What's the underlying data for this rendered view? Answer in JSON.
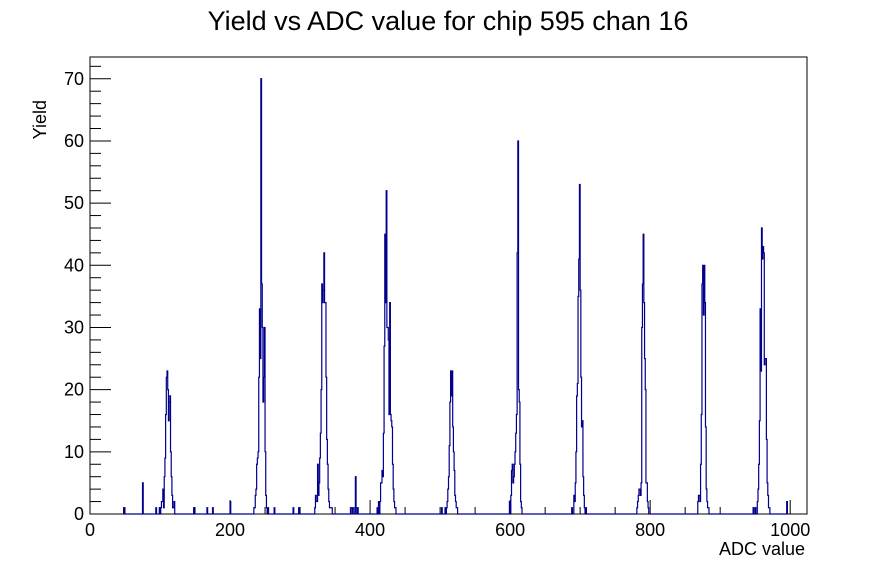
{
  "chart_data": {
    "type": "bar",
    "title": "Yield vs ADC value for chip 595 chan 16",
    "xlabel": "ADC value",
    "ylabel": "Yield",
    "xlim": [
      0,
      1024
    ],
    "ylim": [
      0,
      73.5
    ],
    "x_ticks": [
      0,
      200,
      400,
      600,
      800,
      1000
    ],
    "y_ticks": [
      0,
      10,
      20,
      30,
      40,
      50,
      60,
      70
    ],
    "grid": false,
    "legend": "none",
    "series": [
      {
        "color": "#00008b",
        "points": [
          [
            48,
            1
          ],
          [
            75,
            5
          ],
          [
            94,
            1
          ],
          [
            99,
            1
          ],
          [
            101,
            1
          ],
          [
            102,
            2
          ],
          [
            103,
            2
          ],
          [
            104,
            4
          ],
          [
            105,
            1
          ],
          [
            106,
            6
          ],
          [
            107,
            9
          ],
          [
            108,
            16
          ],
          [
            109,
            22
          ],
          [
            110,
            23
          ],
          [
            111,
            20
          ],
          [
            112,
            15
          ],
          [
            113,
            18
          ],
          [
            114,
            19
          ],
          [
            115,
            10
          ],
          [
            116,
            6
          ],
          [
            117,
            3
          ],
          [
            118,
            1
          ],
          [
            119,
            1
          ],
          [
            120,
            2
          ],
          [
            148,
            1
          ],
          [
            167,
            1
          ],
          [
            175,
            1
          ],
          [
            200,
            2
          ],
          [
            234,
            1
          ],
          [
            235,
            1
          ],
          [
            236,
            3
          ],
          [
            237,
            4
          ],
          [
            238,
            8
          ],
          [
            239,
            9
          ],
          [
            240,
            10
          ],
          [
            241,
            22
          ],
          [
            242,
            33
          ],
          [
            243,
            25
          ],
          [
            244,
            70
          ],
          [
            245,
            37
          ],
          [
            246,
            30
          ],
          [
            247,
            18
          ],
          [
            248,
            22
          ],
          [
            249,
            30
          ],
          [
            250,
            10
          ],
          [
            251,
            3
          ],
          [
            252,
            1
          ],
          [
            254,
            1
          ],
          [
            263,
            1
          ],
          [
            290,
            1
          ],
          [
            298,
            1
          ],
          [
            321,
            1
          ],
          [
            322,
            3
          ],
          [
            323,
            2
          ],
          [
            324,
            2
          ],
          [
            325,
            8
          ],
          [
            326,
            3
          ],
          [
            327,
            5
          ],
          [
            328,
            9
          ],
          [
            329,
            13
          ],
          [
            330,
            20
          ],
          [
            331,
            37
          ],
          [
            332,
            34
          ],
          [
            333,
            36
          ],
          [
            334,
            42
          ],
          [
            335,
            34
          ],
          [
            336,
            34
          ],
          [
            337,
            22
          ],
          [
            338,
            12
          ],
          [
            339,
            8
          ],
          [
            340,
            4
          ],
          [
            341,
            2
          ],
          [
            342,
            1
          ],
          [
            343,
            1
          ],
          [
            344,
            1
          ],
          [
            345,
            1
          ],
          [
            372,
            1
          ],
          [
            373,
            1
          ],
          [
            375,
            1
          ],
          [
            376,
            1
          ],
          [
            379,
            6
          ],
          [
            380,
            1
          ],
          [
            382,
            1
          ],
          [
            410,
            1
          ],
          [
            412,
            2
          ],
          [
            414,
            2
          ],
          [
            415,
            5
          ],
          [
            416,
            5
          ],
          [
            417,
            7
          ],
          [
            418,
            6
          ],
          [
            419,
            13
          ],
          [
            420,
            27
          ],
          [
            421,
            45
          ],
          [
            422,
            34
          ],
          [
            423,
            52
          ],
          [
            424,
            30
          ],
          [
            425,
            30
          ],
          [
            426,
            28
          ],
          [
            427,
            16
          ],
          [
            428,
            34
          ],
          [
            429,
            16
          ],
          [
            430,
            15
          ],
          [
            431,
            14
          ],
          [
            432,
            8
          ],
          [
            433,
            4
          ],
          [
            434,
            2
          ],
          [
            435,
            1
          ],
          [
            436,
            1
          ],
          [
            502,
            1
          ],
          [
            507,
            1
          ],
          [
            509,
            1
          ],
          [
            510,
            2
          ],
          [
            511,
            4
          ],
          [
            512,
            6
          ],
          [
            513,
            11
          ],
          [
            514,
            18
          ],
          [
            515,
            23
          ],
          [
            516,
            19
          ],
          [
            517,
            23
          ],
          [
            518,
            14
          ],
          [
            519,
            10
          ],
          [
            520,
            7
          ],
          [
            521,
            3
          ],
          [
            522,
            2
          ],
          [
            523,
            1
          ],
          [
            524,
            1
          ],
          [
            599,
            2
          ],
          [
            601,
            3
          ],
          [
            602,
            7
          ],
          [
            603,
            8
          ],
          [
            604,
            5
          ],
          [
            605,
            6
          ],
          [
            606,
            8
          ],
          [
            607,
            10
          ],
          [
            608,
            13
          ],
          [
            609,
            16
          ],
          [
            610,
            42
          ],
          [
            611,
            60
          ],
          [
            612,
            20
          ],
          [
            613,
            18
          ],
          [
            614,
            8
          ],
          [
            615,
            2
          ],
          [
            616,
            1
          ],
          [
            688,
            1
          ],
          [
            691,
            3
          ],
          [
            692,
            2
          ],
          [
            693,
            5
          ],
          [
            694,
            10
          ],
          [
            695,
            19
          ],
          [
            696,
            21
          ],
          [
            697,
            35
          ],
          [
            698,
            41
          ],
          [
            699,
            53
          ],
          [
            700,
            36
          ],
          [
            701,
            22
          ],
          [
            702,
            14
          ],
          [
            703,
            15
          ],
          [
            704,
            6
          ],
          [
            705,
            3
          ],
          [
            706,
            1
          ],
          [
            708,
            1
          ],
          [
            781,
            1
          ],
          [
            782,
            2
          ],
          [
            783,
            3
          ],
          [
            784,
            4
          ],
          [
            785,
            4
          ],
          [
            786,
            3
          ],
          [
            787,
            5
          ],
          [
            788,
            30
          ],
          [
            789,
            37
          ],
          [
            790,
            45
          ],
          [
            791,
            34
          ],
          [
            792,
            25
          ],
          [
            793,
            20
          ],
          [
            794,
            5
          ],
          [
            795,
            5
          ],
          [
            796,
            2
          ],
          [
            797,
            1
          ],
          [
            868,
            2
          ],
          [
            869,
            3
          ],
          [
            870,
            3
          ],
          [
            871,
            2
          ],
          [
            872,
            8
          ],
          [
            873,
            16
          ],
          [
            874,
            37
          ],
          [
            875,
            40
          ],
          [
            876,
            32
          ],
          [
            877,
            40
          ],
          [
            878,
            34
          ],
          [
            879,
            14
          ],
          [
            880,
            4
          ],
          [
            881,
            2
          ],
          [
            882,
            1
          ],
          [
            883,
            1
          ],
          [
            947,
            1
          ],
          [
            950,
            1
          ],
          [
            953,
            2
          ],
          [
            954,
            4
          ],
          [
            955,
            8
          ],
          [
            956,
            15
          ],
          [
            957,
            33
          ],
          [
            958,
            23
          ],
          [
            959,
            46
          ],
          [
            960,
            41
          ],
          [
            961,
            43
          ],
          [
            962,
            42
          ],
          [
            963,
            24
          ],
          [
            964,
            25
          ],
          [
            965,
            25
          ],
          [
            966,
            12
          ],
          [
            967,
            5
          ],
          [
            968,
            3
          ],
          [
            969,
            1
          ],
          [
            970,
            1
          ],
          [
            995,
            2
          ]
        ]
      }
    ]
  }
}
